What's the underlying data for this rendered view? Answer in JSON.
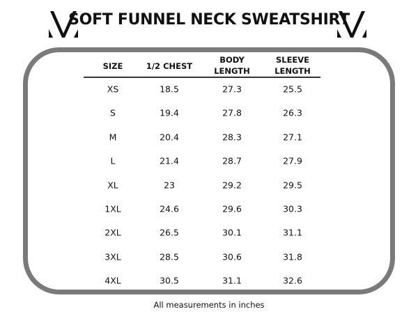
{
  "title": "SOFT FUNNEL NECK SWEATSHIRT",
  "logo_icon": "v-monogram-logo",
  "border_color": "#7a7a7a",
  "table": {
    "headers": [
      [
        "SIZE"
      ],
      [
        "1/2 CHEST"
      ],
      [
        "BODY",
        "LENGTH"
      ],
      [
        "SLEEVE",
        "LENGTH"
      ]
    ],
    "rows": [
      [
        "XS",
        "18.5",
        "27.3",
        "25.5"
      ],
      [
        "S",
        "19.4",
        "27.8",
        "26.3"
      ],
      [
        "M",
        "20.4",
        "28.3",
        "27.1"
      ],
      [
        "L",
        "21.4",
        "28.7",
        "27.9"
      ],
      [
        "XL",
        "23",
        "29.2",
        "29.5"
      ],
      [
        "1XL",
        "24.6",
        "29.6",
        "30.3"
      ],
      [
        "2XL",
        "26.5",
        "30.1",
        "31.1"
      ],
      [
        "3XL",
        "28.5",
        "30.6",
        "31.8"
      ],
      [
        "4XL",
        "30.5",
        "31.1",
        "32.6"
      ]
    ]
  },
  "footer": "All measurements in inches"
}
